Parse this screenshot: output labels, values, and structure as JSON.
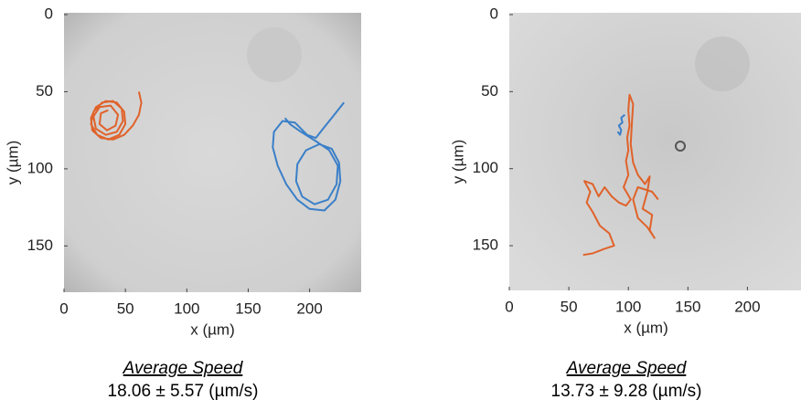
{
  "chart_data": [
    {
      "type": "line",
      "xlabel": "x (µm)",
      "ylabel": "y (µm)",
      "xlim": [
        0,
        242
      ],
      "ylim": [
        0,
        180
      ],
      "y_inverted": true,
      "xticks": [
        0,
        50,
        100,
        150,
        200
      ],
      "yticks": [
        0,
        50,
        100,
        150
      ],
      "caption": "Average Speed",
      "speed": "18.06 ± 5.57 (µm/s)",
      "series": [
        {
          "color": "#e0622a",
          "x": [
            61,
            63,
            61,
            56,
            49,
            40,
            30,
            23,
            22,
            26,
            34,
            43,
            49,
            50,
            45,
            36,
            27,
            22,
            24,
            31,
            40,
            47,
            48,
            43,
            34,
            26,
            24,
            29,
            38,
            44,
            42,
            35,
            29,
            30,
            36
          ],
          "values": [
            50,
            57,
            65,
            72,
            78,
            81,
            80,
            75,
            67,
            60,
            56,
            57,
            63,
            71,
            78,
            81,
            78,
            71,
            63,
            57,
            56,
            61,
            69,
            76,
            78,
            74,
            66,
            60,
            59,
            65,
            72,
            75,
            71,
            64,
            62
          ]
        },
        {
          "color": "#3a7fc8",
          "x": [
            228,
            220,
            212,
            205,
            198,
            188,
            178,
            171,
            170,
            174,
            181,
            190,
            200,
            212,
            221,
            225,
            224,
            218,
            208,
            197,
            190,
            189,
            194,
            204,
            215,
            222,
            223,
            216,
            205,
            193,
            184,
            180
          ],
          "values": [
            57,
            65,
            73,
            80,
            78,
            70,
            69,
            76,
            86,
            98,
            110,
            120,
            126,
            127,
            120,
            108,
            96,
            87,
            84,
            88,
            97,
            108,
            118,
            123,
            120,
            110,
            98,
            88,
            82,
            76,
            71,
            67
          ]
        }
      ]
    },
    {
      "type": "line",
      "xlabel": "x (µm)",
      "ylabel": "y (µm)",
      "xlim": [
        0,
        245
      ],
      "ylim": [
        0,
        179
      ],
      "y_inverted": true,
      "xticks": [
        0,
        50,
        100,
        150,
        200
      ],
      "yticks": [
        0,
        50,
        100,
        150
      ],
      "caption": "Average Speed",
      "speed": "13.73 ± 9.28 (µm/s)",
      "series": [
        {
          "color": "#e0622a",
          "x": [
            62,
            70,
            80,
            88,
            84,
            76,
            70,
            65,
            68,
            63,
            70,
            75,
            80,
            86,
            92,
            98,
            102,
            96,
            100,
            98,
            100,
            99,
            101,
            100,
            101,
            104,
            103,
            102,
            104,
            108,
            114,
            118,
            116,
            112,
            120,
            118,
            122,
            116,
            108,
            104,
            108,
            120,
            125
          ],
          "values": [
            156,
            155,
            152,
            150,
            142,
            137,
            128,
            122,
            115,
            108,
            110,
            118,
            112,
            118,
            122,
            124,
            120,
            112,
            104,
            95,
            88,
            80,
            72,
            62,
            52,
            58,
            70,
            84,
            96,
            104,
            110,
            105,
            115,
            126,
            130,
            140,
            145,
            138,
            132,
            120,
            112,
            115,
            120
          ]
        },
        {
          "color": "#3a7fc8",
          "x": [
            97,
            94,
            95,
            92,
            94,
            93,
            91
          ],
          "values": [
            65,
            67,
            70,
            72,
            75,
            78,
            76
          ]
        }
      ]
    }
  ]
}
